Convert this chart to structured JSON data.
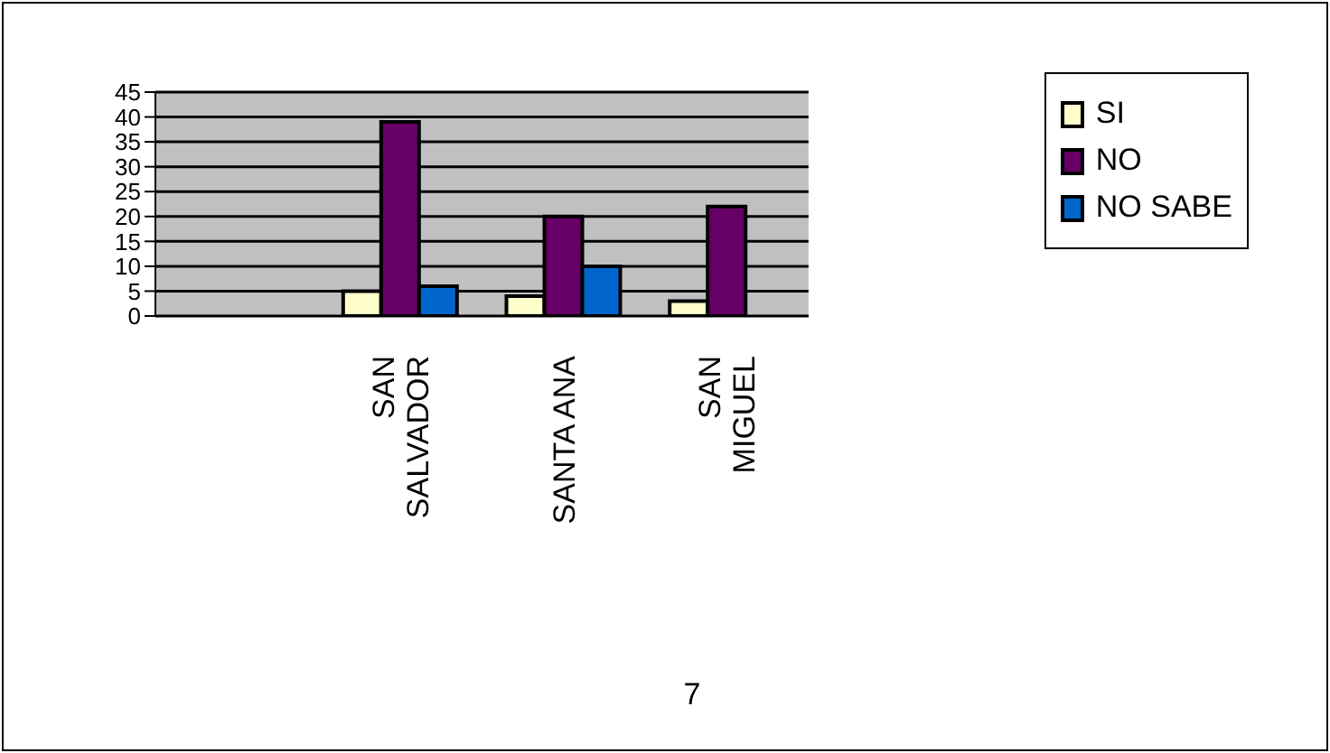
{
  "chart_data": {
    "type": "bar",
    "categories": [
      null,
      "SAN SALVADOR",
      "SANTA ANA",
      "SAN MIGUEL"
    ],
    "series": [
      {
        "name": "SI",
        "color": "#ffffcc",
        "values": [
          null,
          5,
          4,
          3
        ]
      },
      {
        "name": "NO",
        "color": "#660066",
        "values": [
          null,
          39,
          20,
          22
        ]
      },
      {
        "name": "NO SABE",
        "color": "#0066cc",
        "values": [
          null,
          6,
          10,
          null
        ]
      }
    ],
    "ylim": [
      0,
      45
    ],
    "yticks": [
      0,
      5,
      10,
      15,
      20,
      25,
      30,
      35,
      40,
      45
    ],
    "grid": "y",
    "legend": "right",
    "annotations": [
      "7"
    ]
  }
}
